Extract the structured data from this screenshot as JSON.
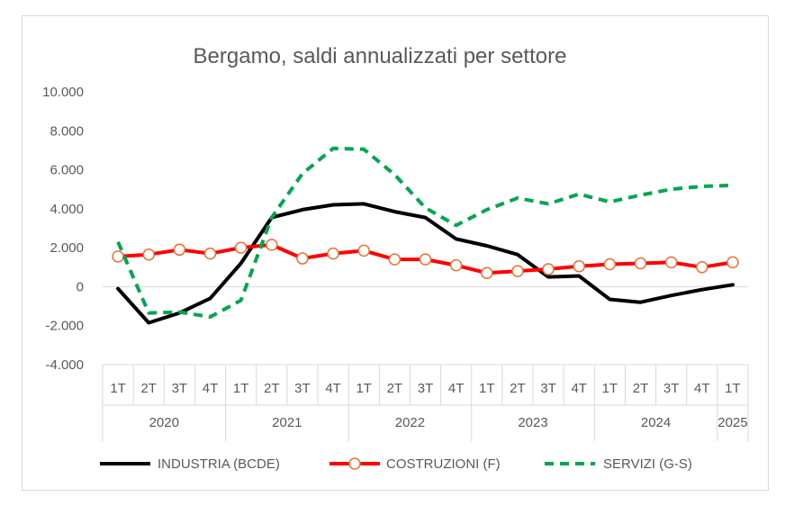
{
  "chart_data": {
    "type": "line",
    "title": "Bergamo, saldi annualizzati per settore",
    "xlabel": "",
    "ylabel": "",
    "ylim": [
      -4000,
      10000
    ],
    "yticks": [
      -4000,
      -2000,
      0,
      2000,
      4000,
      6000,
      8000,
      10000
    ],
    "ytick_labels": [
      "-4.000",
      "-2.000",
      "0",
      "2.000",
      "4.000",
      "6.000",
      "8.000",
      "10.000"
    ],
    "quarters": [
      "1T",
      "2T",
      "3T",
      "4T",
      "1T",
      "2T",
      "3T",
      "4T",
      "1T",
      "2T",
      "3T",
      "4T",
      "1T",
      "2T",
      "3T",
      "4T",
      "1T",
      "2T",
      "3T",
      "4T",
      "1T"
    ],
    "years": [
      {
        "label": "2020",
        "quarters": 4
      },
      {
        "label": "2021",
        "quarters": 4
      },
      {
        "label": "2022",
        "quarters": 4
      },
      {
        "label": "2023",
        "quarters": 4
      },
      {
        "label": "2024",
        "quarters": 4
      },
      {
        "label": "2025",
        "quarters": 1
      }
    ],
    "grid": "horizontal-zero-line",
    "legend_position": "bottom",
    "series": [
      {
        "name": "INDUSTRIA (BCDE)",
        "color": "#000000",
        "style": "solid",
        "marker": "none",
        "values": [
          -100,
          -1850,
          -1350,
          -600,
          1200,
          3550,
          3950,
          4200,
          4250,
          3850,
          3550,
          2450,
          2100,
          1650,
          500,
          550,
          -650,
          -800,
          -450,
          -150,
          100
        ]
      },
      {
        "name": "COSTRUZIONI (F)",
        "color": "#ff0000",
        "style": "solid",
        "marker": "circle",
        "values": [
          1550,
          1650,
          1900,
          1700,
          2000,
          2150,
          1450,
          1700,
          1850,
          1400,
          1400,
          1100,
          700,
          800,
          900,
          1050,
          1150,
          1200,
          1250,
          1000,
          1250
        ]
      },
      {
        "name": "SERVIZI (G-S)",
        "color": "#00a651",
        "style": "dashed",
        "marker": "none",
        "values": [
          2300,
          -1350,
          -1300,
          -1550,
          -700,
          3550,
          5800,
          7100,
          7050,
          5750,
          4050,
          3150,
          3950,
          4550,
          4250,
          4750,
          4350,
          4700,
          5000,
          5150,
          5200
        ]
      }
    ]
  }
}
